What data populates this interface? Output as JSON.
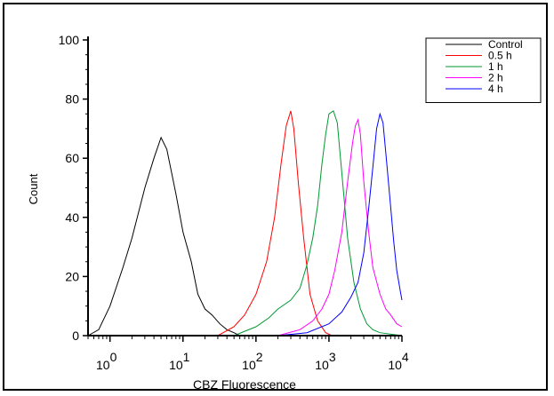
{
  "chart_data": {
    "type": "line",
    "title": "",
    "xlabel": "CBZ Fluorescence",
    "ylabel": "Count",
    "x_scale": "log",
    "xlim": [
      0.5,
      10000
    ],
    "ylim": [
      0,
      100
    ],
    "x_ticks": [
      {
        "base": "10",
        "exp": "0",
        "value": 1
      },
      {
        "base": "10",
        "exp": "1",
        "value": 10
      },
      {
        "base": "10",
        "exp": "2",
        "value": 100
      },
      {
        "base": "10",
        "exp": "3",
        "value": 1000
      },
      {
        "base": "10",
        "exp": "4",
        "value": 10000
      }
    ],
    "y_ticks": [
      "0",
      "20",
      "40",
      "60",
      "80",
      "100"
    ],
    "grid": false,
    "legend_position": "top-right",
    "series": [
      {
        "name": "Control",
        "color": "#000000",
        "points": [
          [
            0.5,
            0
          ],
          [
            0.7,
            2
          ],
          [
            1,
            10
          ],
          [
            1.5,
            23
          ],
          [
            2,
            33
          ],
          [
            3,
            50
          ],
          [
            4,
            60
          ],
          [
            5,
            67
          ],
          [
            6,
            63
          ],
          [
            8,
            48
          ],
          [
            10,
            35
          ],
          [
            13,
            25
          ],
          [
            16,
            14
          ],
          [
            20,
            9
          ],
          [
            25,
            7
          ],
          [
            32,
            4
          ],
          [
            40,
            2
          ],
          [
            50,
            1
          ],
          [
            60,
            0
          ],
          [
            80,
            0
          ]
        ]
      },
      {
        "name": "0.5 h",
        "color": "#ff0000",
        "points": [
          [
            30,
            0
          ],
          [
            50,
            3
          ],
          [
            70,
            7
          ],
          [
            100,
            14
          ],
          [
            140,
            25
          ],
          [
            180,
            40
          ],
          [
            220,
            58
          ],
          [
            260,
            71
          ],
          [
            300,
            76
          ],
          [
            330,
            70
          ],
          [
            380,
            52
          ],
          [
            450,
            33
          ],
          [
            550,
            14
          ],
          [
            700,
            5
          ],
          [
            900,
            1
          ],
          [
            1100,
            0
          ]
        ]
      },
      {
        "name": "1 h",
        "color": "#009933",
        "points": [
          [
            50,
            0
          ],
          [
            100,
            3
          ],
          [
            150,
            6
          ],
          [
            200,
            9
          ],
          [
            300,
            12
          ],
          [
            400,
            16
          ],
          [
            500,
            24
          ],
          [
            600,
            33
          ],
          [
            700,
            44
          ],
          [
            800,
            58
          ],
          [
            900,
            68
          ],
          [
            1000,
            75
          ],
          [
            1150,
            76
          ],
          [
            1300,
            72
          ],
          [
            1500,
            55
          ],
          [
            1800,
            33
          ],
          [
            2200,
            18
          ],
          [
            2700,
            9
          ],
          [
            3300,
            4
          ],
          [
            4000,
            2
          ],
          [
            5000,
            1
          ],
          [
            10000,
            0
          ]
        ]
      },
      {
        "name": "2 h",
        "color": "#ff00ff",
        "points": [
          [
            200,
            0
          ],
          [
            400,
            2
          ],
          [
            600,
            5
          ],
          [
            800,
            9
          ],
          [
            1000,
            14
          ],
          [
            1200,
            22
          ],
          [
            1500,
            35
          ],
          [
            1800,
            52
          ],
          [
            2100,
            65
          ],
          [
            2300,
            71
          ],
          [
            2500,
            73
          ],
          [
            2700,
            68
          ],
          [
            3000,
            52
          ],
          [
            3500,
            35
          ],
          [
            4000,
            23
          ],
          [
            5000,
            14
          ],
          [
            6000,
            9
          ],
          [
            7000,
            7
          ],
          [
            8500,
            4
          ],
          [
            10000,
            3
          ]
        ]
      },
      {
        "name": "4 h",
        "color": "#0000ff",
        "points": [
          [
            200,
            0
          ],
          [
            500,
            1
          ],
          [
            1000,
            4
          ],
          [
            1500,
            8
          ],
          [
            2000,
            13
          ],
          [
            2500,
            18
          ],
          [
            3000,
            28
          ],
          [
            3500,
            43
          ],
          [
            4000,
            57
          ],
          [
            4500,
            70
          ],
          [
            5000,
            75
          ],
          [
            5500,
            72
          ],
          [
            6000,
            62
          ],
          [
            6800,
            47
          ],
          [
            7700,
            32
          ],
          [
            8500,
            22
          ],
          [
            9500,
            15
          ],
          [
            10000,
            12
          ]
        ]
      }
    ]
  }
}
